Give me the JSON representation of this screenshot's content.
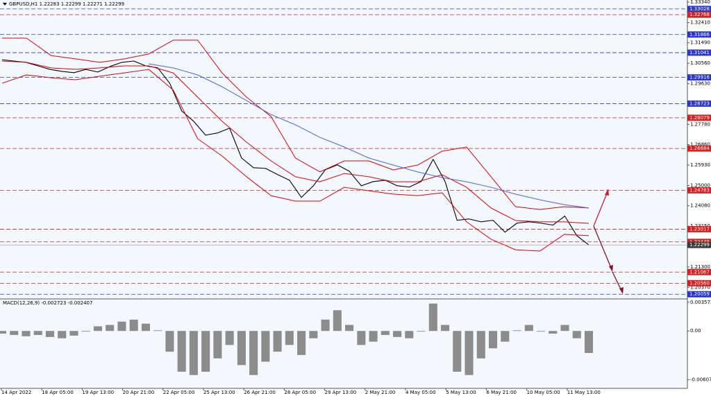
{
  "chart_data": [
    {
      "type": "line",
      "title": "GBPUSD,H1  1.22283 1.22299 1.22271 1.22299",
      "ylim": [
        1.19877,
        1.33435
      ],
      "yticks": [
        {
          "value": 1.3334,
          "label": "1.33340"
        },
        {
          "value": 1.3241,
          "label": "1.32410"
        },
        {
          "value": 1.3149,
          "label": "1.31490"
        },
        {
          "value": 1.3056,
          "label": "1.30560"
        },
        {
          "value": 1.2963,
          "label": "1.29630"
        },
        {
          "value": 1.2778,
          "label": "1.27780"
        },
        {
          "value": 1.2686,
          "label": "1.26860"
        },
        {
          "value": 1.2593,
          "label": "1.25930"
        },
        {
          "value": 1.25,
          "label": "1.25000"
        },
        {
          "value": 1.2408,
          "label": "1.24080"
        },
        {
          "value": 1.2315,
          "label": "1.23150"
        },
        {
          "value": 1.213,
          "label": "1.21300"
        },
        {
          "value": 1.2037,
          "label": "1.20370"
        }
      ],
      "series": [
        {
          "color": "#000000",
          "values": [
            1.3072,
            1.3066,
            1.306,
            1.3044,
            1.3028,
            1.3019,
            1.3013,
            1.3028,
            1.3016,
            1.3041,
            1.306,
            1.3066,
            1.3044,
            1.3035,
            1.2965,
            1.2839,
            1.2792,
            1.2729,
            1.2739,
            1.2761,
            1.2625,
            1.2581,
            1.2578,
            1.255,
            1.2524,
            1.2446,
            1.2499,
            1.2572,
            1.2594,
            1.2565,
            1.2499,
            1.2518,
            1.2524,
            1.2499,
            1.2493,
            1.2518,
            1.2619,
            1.2518,
            1.2342,
            1.2348,
            1.2335,
            1.2342,
            1.2288,
            1.2329,
            1.2335,
            1.2329,
            1.232,
            1.2361,
            1.2272,
            1.22299
          ]
        },
        {
          "color": "#e00000",
          "values": [
            1.317,
            1.317,
            1.3091,
            1.3076,
            1.306,
            1.3076,
            1.3098,
            1.3161,
            1.3161,
            1.3012,
            1.2902,
            1.2814,
            1.2625,
            1.2562,
            1.2612,
            1.2612,
            1.2571,
            1.2593,
            1.2656,
            1.2675,
            1.254,
            1.2404,
            1.2391,
            1.2404,
            1.2398
          ]
        },
        {
          "color": "#e00000",
          "values": [
            1.3066,
            1.306,
            1.3035,
            1.3028,
            1.3035,
            1.3044,
            1.3044,
            1.3012,
            1.2902,
            1.2792,
            1.2697,
            1.2612,
            1.254,
            1.2517,
            1.2555,
            1.254,
            1.2517,
            1.2517,
            1.2549,
            1.2492,
            1.2398,
            1.2341,
            1.2335,
            1.2335,
            1.2328
          ]
        },
        {
          "color": "#e00000",
          "values": [
            1.2965,
            1.3003,
            1.299,
            1.2981,
            1.2997,
            1.3012,
            1.3028,
            1.2934,
            1.2713,
            1.2634,
            1.254,
            1.2454,
            1.2429,
            1.2429,
            1.2492,
            1.2476,
            1.2461,
            1.2454,
            1.2467,
            1.2335,
            1.2256,
            1.2208,
            1.2202,
            1.2278,
            1.2272
          ]
        },
        {
          "color": "#5060d8",
          "values": [
            null,
            null,
            null,
            null,
            null,
            null,
            1.3053,
            1.3035,
            1.3003,
            1.2949,
            1.2886,
            1.2823,
            1.2776,
            1.2719,
            1.2675,
            1.2625,
            1.2593,
            1.2562,
            1.2536,
            1.2517,
            1.2492,
            1.2461,
            1.2435,
            1.2413,
            1.2398
          ]
        }
      ],
      "levels": [
        {
          "value": 1.33028,
          "label": "1.33028",
          "color": "#2a35d0"
        },
        {
          "value": 1.32768,
          "label": "1.32768",
          "color": "#d42020"
        },
        {
          "value": 1.31866,
          "label": "1.31866",
          "color": "#2a35d0"
        },
        {
          "value": 1.31041,
          "label": "1.31041",
          "color": "#2a35d0"
        },
        {
          "value": 1.29916,
          "label": "1.29916",
          "color": "#2a35d0"
        },
        {
          "value": 1.28723,
          "label": "1.28723",
          "color": "#2a35d0"
        },
        {
          "value": 1.28079,
          "label": "1.28079",
          "color": "#d42020"
        },
        {
          "value": 1.26684,
          "label": "1.26684",
          "color": "#d42020"
        },
        {
          "value": 1.24783,
          "label": "1.24783",
          "color": "#d42020"
        },
        {
          "value": 1.23017,
          "label": "1.23017",
          "color": "#d42020"
        },
        {
          "value": 1.22438,
          "label": "1.22438",
          "color": "#d42020"
        },
        {
          "value": 1.21067,
          "label": "1.21067",
          "color": "#d42020"
        },
        {
          "value": 1.2056,
          "label": "1.20560",
          "color": "#d42020"
        },
        {
          "value": 1.20059,
          "label": "1.20059",
          "color": "#2a35d0"
        }
      ],
      "current_price": 1.22299
    },
    {
      "type": "bar",
      "title": "MACD(12,26,9) -0.002723 -0.002407",
      "color": "#8c8c8c",
      "ylim": [
        -0.00714,
        0.0039
      ],
      "yticks": [
        0.003572,
        {
          "value": 0,
          "label": "0.00"
        },
        -0.006072
      ],
      "values": [
        -0.00033,
        -0.0005,
        -0.00066,
        -0.0005,
        -0.00075,
        -0.00091,
        -0.00058,
        -8e-05,
        0.00058,
        0.00075,
        0.00116,
        0.00141,
        0.00091,
        8e-05,
        -0.00258,
        -0.00507,
        -0.00548,
        -0.00507,
        -0.00341,
        -0.00174,
        -0.00424,
        -0.00548,
        -0.00382,
        -0.00258,
        -0.00174,
        -0.00299,
        -0.00091,
        0.00141,
        0.00258,
        0.00075,
        -0.00174,
        -0.00133,
        -0.0005,
        -0.00075,
        -0.00091,
        -8e-05,
        0.00341,
        0.00075,
        -0.00507,
        -0.00548,
        -0.00341,
        -0.00216,
        -0.00133,
        8e-05,
        0.00075,
        -8e-05,
        -0.00033,
        0.00075,
        -0.00091,
        -0.00274
      ],
      "xtick_labels": [
        "14 Apr 2022",
        "18 Apr 05:00",
        "19 Apr 13:00",
        "20 Apr 21:00",
        "22 Apr 05:00",
        "25 Apr 13:00",
        "26 Apr 21:00",
        "28 Apr 05:00",
        "29 Apr 13:00",
        "2 May 21:00",
        "4 May 05:00",
        "5 May 13:00",
        "6 May 21:00",
        "10 May 05:00",
        "11 May 13:00"
      ]
    }
  ]
}
